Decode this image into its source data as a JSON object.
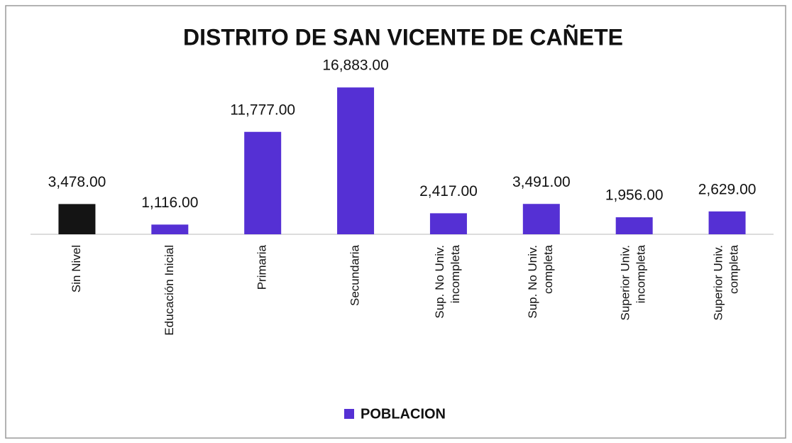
{
  "chart_data": {
    "type": "bar",
    "title": "DISTRITO DE SAN VICENTE DE CAÑETE",
    "categories": [
      "Sin Nivel",
      "Educación Inicial",
      "Primaria",
      "Secundaria",
      "Sup. No Univ.\nincompleta",
      "Sup. No Univ.\ncompleta",
      "Superior Univ.\nincompleta",
      "Superior Univ.\ncompleta"
    ],
    "series": [
      {
        "name": "POBLACION",
        "color": "#5530d4",
        "values": [
          3478,
          1116,
          11777,
          16883,
          2417,
          3491,
          1956,
          2629
        ],
        "value_labels": [
          "3,478.00",
          "1,116.00",
          "11,777.00",
          "16,883.00",
          "2,417.00",
          "3,491.00",
          "1,956.00",
          "2,629.00"
        ],
        "colors": [
          "#141414",
          "#5530d4",
          "#5530d4",
          "#5530d4",
          "#5530d4",
          "#5530d4",
          "#5530d4",
          "#5530d4"
        ]
      }
    ],
    "ylim": [
      0,
      20000
    ],
    "legend": "bottom"
  }
}
